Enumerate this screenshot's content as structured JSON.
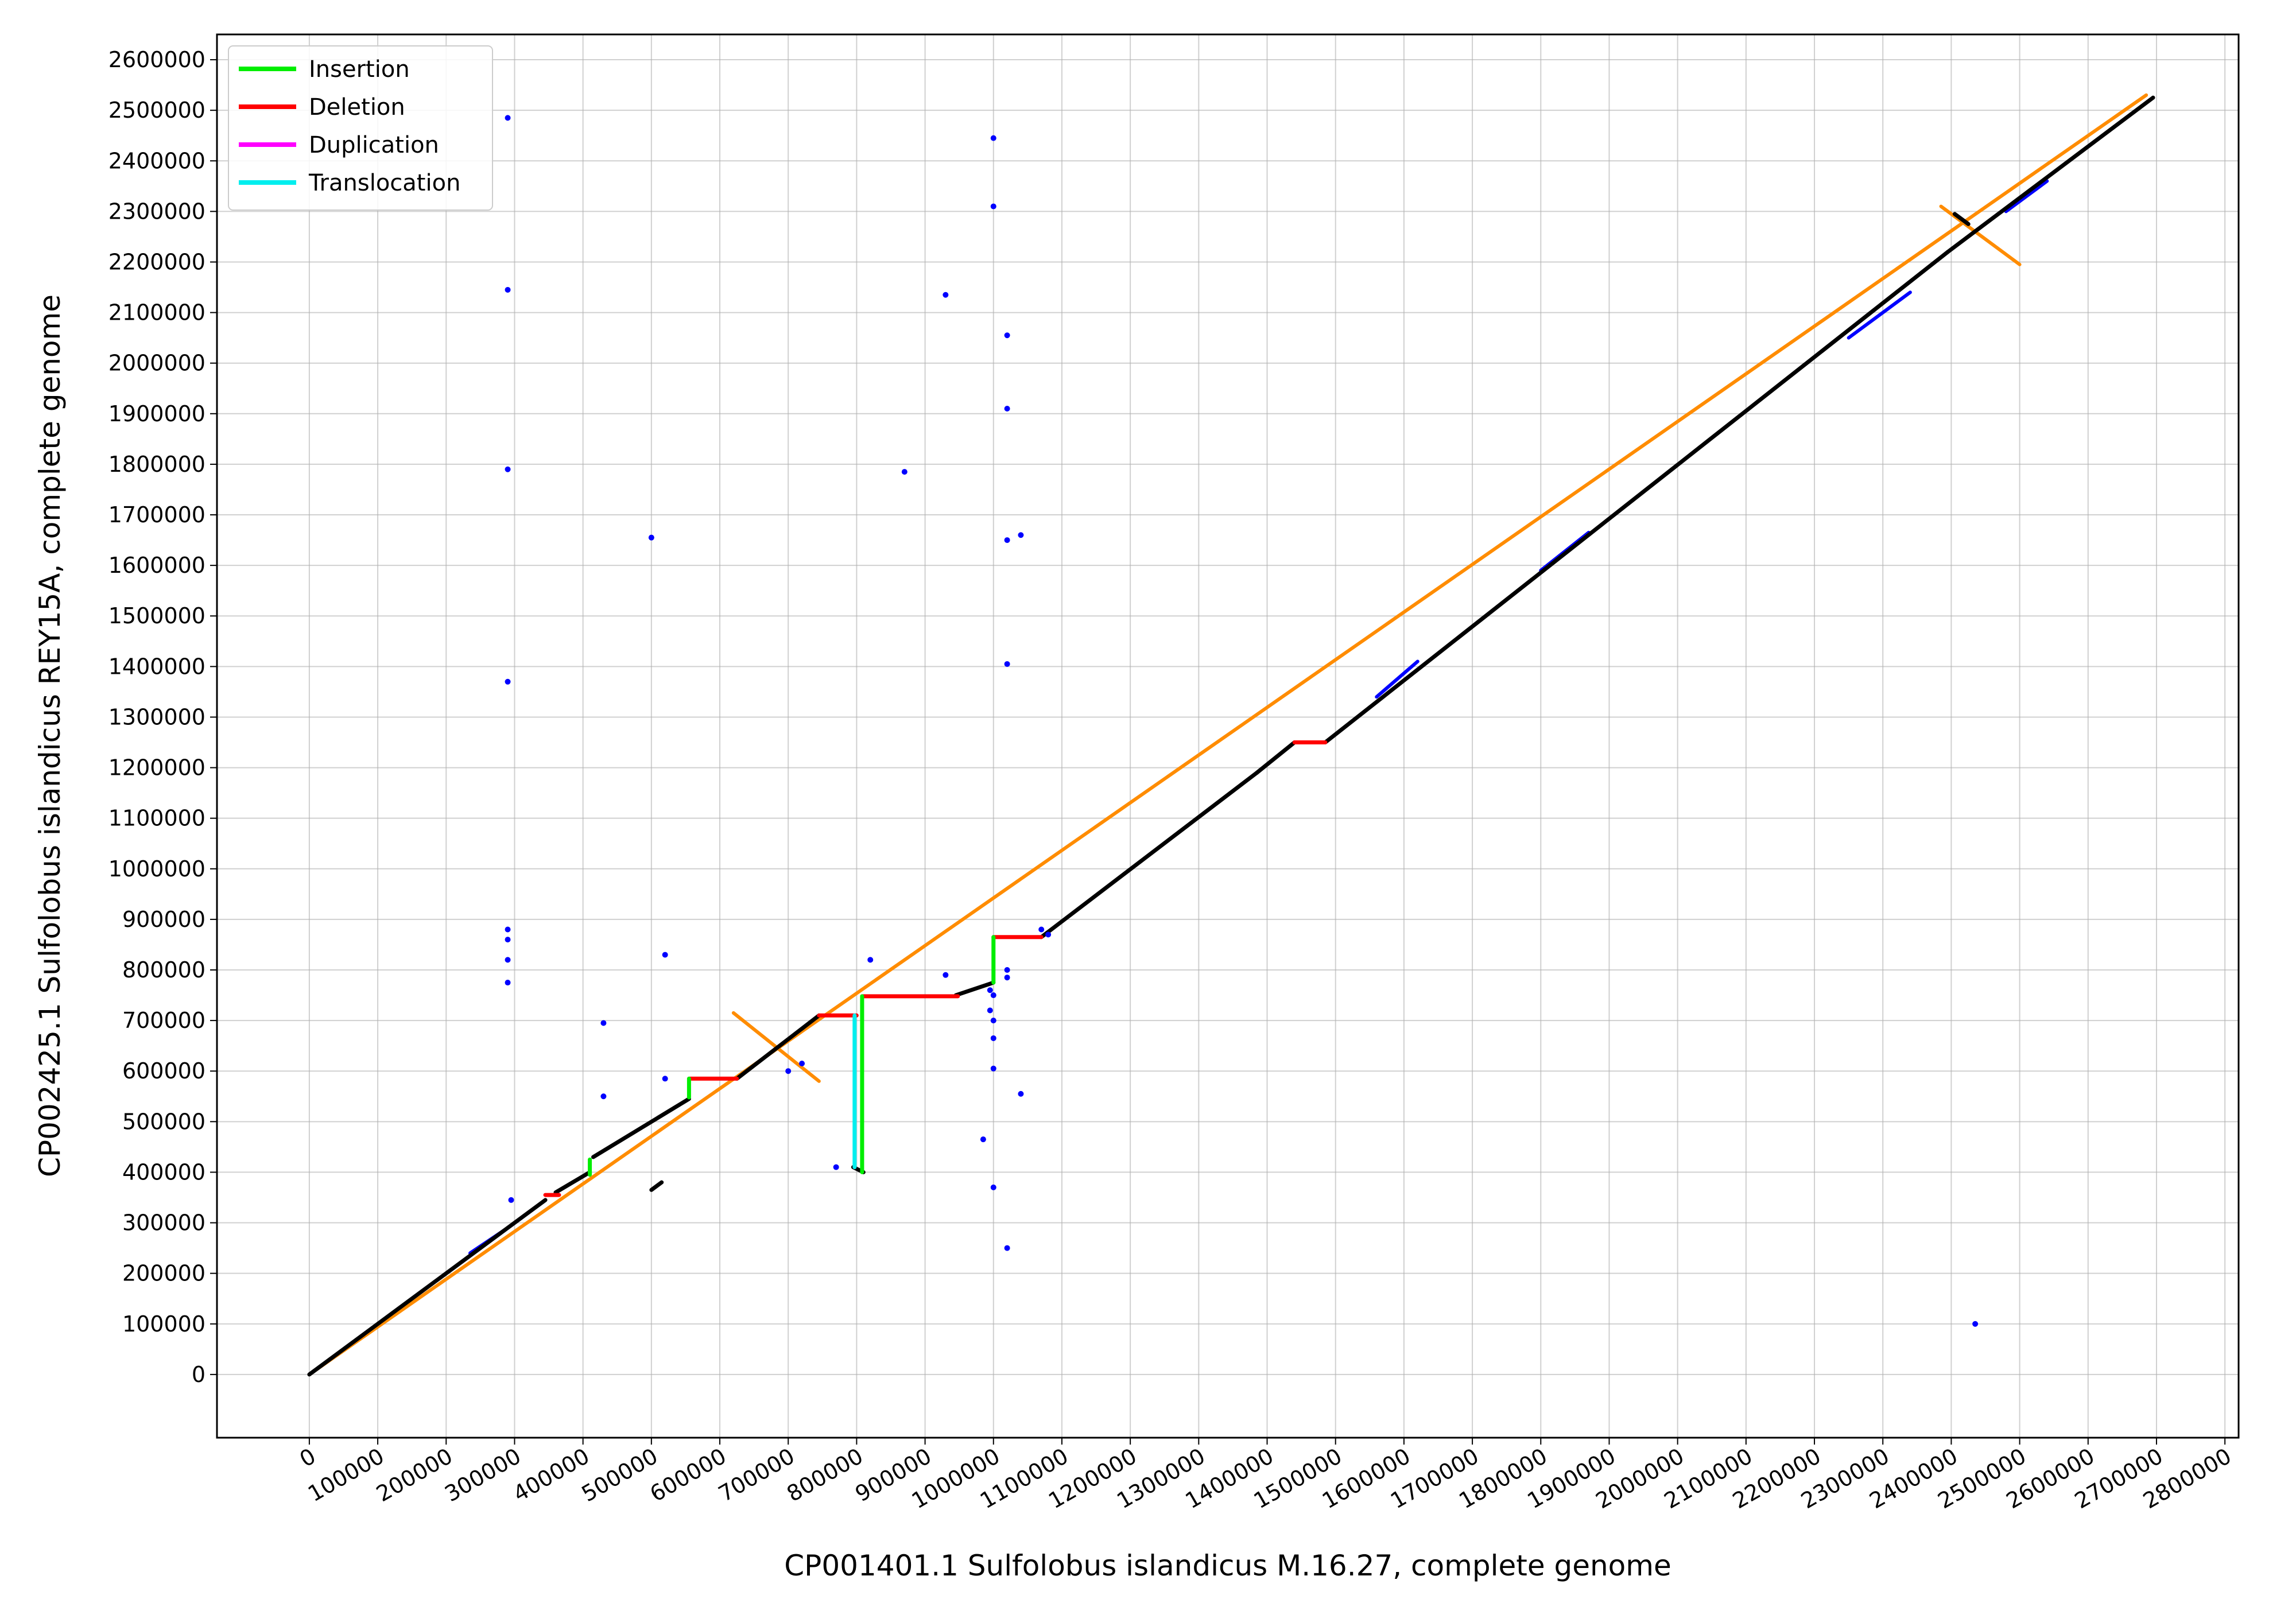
{
  "chart_data": {
    "type": "scatter",
    "xlabel": "CP001401.1 Sulfolobus islandicus M.16.27, complete genome",
    "ylabel": "CP002425.1 Sulfolobus islandicus REY15A, complete genome",
    "xlim": [
      -135000,
      2820000
    ],
    "ylim": [
      -125000,
      2650000
    ],
    "x_ticks": [
      0,
      100000,
      200000,
      300000,
      400000,
      500000,
      600000,
      700000,
      800000,
      900000,
      1000000,
      1100000,
      1200000,
      1300000,
      1400000,
      1500000,
      1600000,
      1700000,
      1800000,
      1900000,
      2000000,
      2100000,
      2200000,
      2300000,
      2400000,
      2500000,
      2600000,
      2700000,
      2800000
    ],
    "y_ticks": [
      0,
      100000,
      200000,
      300000,
      400000,
      500000,
      600000,
      700000,
      800000,
      900000,
      1000000,
      1100000,
      1200000,
      1300000,
      1400000,
      1500000,
      1600000,
      1700000,
      1800000,
      1900000,
      2000000,
      2100000,
      2200000,
      2300000,
      2400000,
      2500000,
      2600000
    ],
    "grid": true,
    "legend_position": "top-left",
    "legend": [
      {
        "label": "Insertion",
        "color": "#00ee00"
      },
      {
        "label": "Deletion",
        "color": "#ff0000"
      },
      {
        "label": "Duplication",
        "color": "#ff00ff"
      },
      {
        "label": "Translocation",
        "color": "#00eeee"
      }
    ],
    "colors": {
      "alignment": "#000000",
      "minor_alignment": "#0000ff",
      "orange": "#ff8c00"
    },
    "segments": [
      {
        "kind": "alignment",
        "x1": 0,
        "y1": 0,
        "x2": 345000,
        "y2": 345000
      },
      {
        "kind": "alignment",
        "x1": 360000,
        "y1": 360000,
        "x2": 410000,
        "y2": 400000
      },
      {
        "kind": "alignment",
        "x1": 415000,
        "y1": 430000,
        "x2": 555000,
        "y2": 545000
      },
      {
        "kind": "alignment",
        "x1": 625000,
        "y1": 585000,
        "x2": 745000,
        "y2": 710000
      },
      {
        "kind": "alignment",
        "x1": 945000,
        "y1": 750000,
        "x2": 1000000,
        "y2": 775000
      },
      {
        "kind": "alignment",
        "x1": 1070000,
        "y1": 865000,
        "x2": 1385000,
        "y2": 1190000
      },
      {
        "kind": "alignment",
        "x1": 1385000,
        "y1": 1190000,
        "x2": 1440000,
        "y2": 1250000
      },
      {
        "kind": "alignment",
        "x1": 1485000,
        "y1": 1250000,
        "x2": 2395000,
        "y2": 2220000
      },
      {
        "kind": "alignment",
        "x1": 2395000,
        "y1": 2220000,
        "x2": 2695000,
        "y2": 2525000
      },
      {
        "kind": "alignment",
        "x1": 500000,
        "y1": 365000,
        "x2": 515000,
        "y2": 380000
      },
      {
        "kind": "alignment",
        "x1": 795000,
        "y1": 410000,
        "x2": 810000,
        "y2": 400000
      },
      {
        "kind": "alignment",
        "x1": 2405000,
        "y1": 2295000,
        "x2": 2425000,
        "y2": 2275000
      },
      {
        "kind": "minor_alignment",
        "x1": 235000,
        "y1": 240000,
        "x2": 290000,
        "y2": 290000
      },
      {
        "kind": "minor_alignment",
        "x1": 320000,
        "y1": 320000,
        "x2": 345000,
        "y2": 345000
      },
      {
        "kind": "minor_alignment",
        "x1": 1560000,
        "y1": 1340000,
        "x2": 1620000,
        "y2": 1410000
      },
      {
        "kind": "minor_alignment",
        "x1": 1800000,
        "y1": 1590000,
        "x2": 1870000,
        "y2": 1665000
      },
      {
        "kind": "minor_alignment",
        "x1": 2250000,
        "y1": 2050000,
        "x2": 2340000,
        "y2": 2140000
      },
      {
        "kind": "minor_alignment",
        "x1": 2480000,
        "y1": 2300000,
        "x2": 2540000,
        "y2": 2360000
      },
      {
        "kind": "orange",
        "x1": 0,
        "y1": 0,
        "x2": 2685000,
        "y2": 2530000
      },
      {
        "kind": "orange",
        "x1": 620000,
        "y1": 715000,
        "x2": 745000,
        "y2": 580000
      },
      {
        "kind": "orange",
        "x1": 2385000,
        "y1": 2310000,
        "x2": 2500000,
        "y2": 2195000
      },
      {
        "kind": "Deletion",
        "x1": 345000,
        "y1": 355000,
        "x2": 365000,
        "y2": 355000
      },
      {
        "kind": "Deletion",
        "x1": 555000,
        "y1": 585000,
        "x2": 625000,
        "y2": 585000
      },
      {
        "kind": "Deletion",
        "x1": 745000,
        "y1": 710000,
        "x2": 800000,
        "y2": 710000
      },
      {
        "kind": "Deletion",
        "x1": 808000,
        "y1": 748000,
        "x2": 948000,
        "y2": 748000
      },
      {
        "kind": "Deletion",
        "x1": 1000000,
        "y1": 865000,
        "x2": 1070000,
        "y2": 865000
      },
      {
        "kind": "Deletion",
        "x1": 1440000,
        "y1": 1250000,
        "x2": 1485000,
        "y2": 1250000
      },
      {
        "kind": "Insertion",
        "x1": 410000,
        "y1": 395000,
        "x2": 410000,
        "y2": 425000
      },
      {
        "kind": "Insertion",
        "x1": 555000,
        "y1": 548000,
        "x2": 555000,
        "y2": 585000
      },
      {
        "kind": "Insertion",
        "x1": 808000,
        "y1": 400000,
        "x2": 808000,
        "y2": 748000
      },
      {
        "kind": "Insertion",
        "x1": 1000000,
        "y1": 775000,
        "x2": 1000000,
        "y2": 865000
      },
      {
        "kind": "Translocation",
        "x1": 797000,
        "y1": 410000,
        "x2": 797000,
        "y2": 710000
      }
    ],
    "points": [
      [
        290000,
        2485000
      ],
      [
        290000,
        2145000
      ],
      [
        290000,
        1790000
      ],
      [
        290000,
        1370000
      ],
      [
        290000,
        880000
      ],
      [
        290000,
        860000
      ],
      [
        290000,
        820000
      ],
      [
        290000,
        775000
      ],
      [
        295000,
        345000
      ],
      [
        430000,
        695000
      ],
      [
        430000,
        550000
      ],
      [
        500000,
        1655000
      ],
      [
        520000,
        830000
      ],
      [
        520000,
        585000
      ],
      [
        700000,
        600000
      ],
      [
        720000,
        615000
      ],
      [
        770000,
        410000
      ],
      [
        820000,
        820000
      ],
      [
        870000,
        1785000
      ],
      [
        930000,
        2135000
      ],
      [
        930000,
        790000
      ],
      [
        995000,
        760000
      ],
      [
        995000,
        720000
      ],
      [
        985000,
        465000
      ],
      [
        1000000,
        2445000
      ],
      [
        1000000,
        2310000
      ],
      [
        1000000,
        750000
      ],
      [
        1000000,
        700000
      ],
      [
        1000000,
        665000
      ],
      [
        1000000,
        605000
      ],
      [
        1000000,
        370000
      ],
      [
        1020000,
        2055000
      ],
      [
        1020000,
        1910000
      ],
      [
        1020000,
        1650000
      ],
      [
        1020000,
        1405000
      ],
      [
        1020000,
        800000
      ],
      [
        1020000,
        785000
      ],
      [
        1020000,
        250000
      ],
      [
        1040000,
        1660000
      ],
      [
        1040000,
        555000
      ],
      [
        1070000,
        880000
      ],
      [
        1080000,
        870000
      ],
      [
        2435000,
        100000
      ]
    ]
  }
}
